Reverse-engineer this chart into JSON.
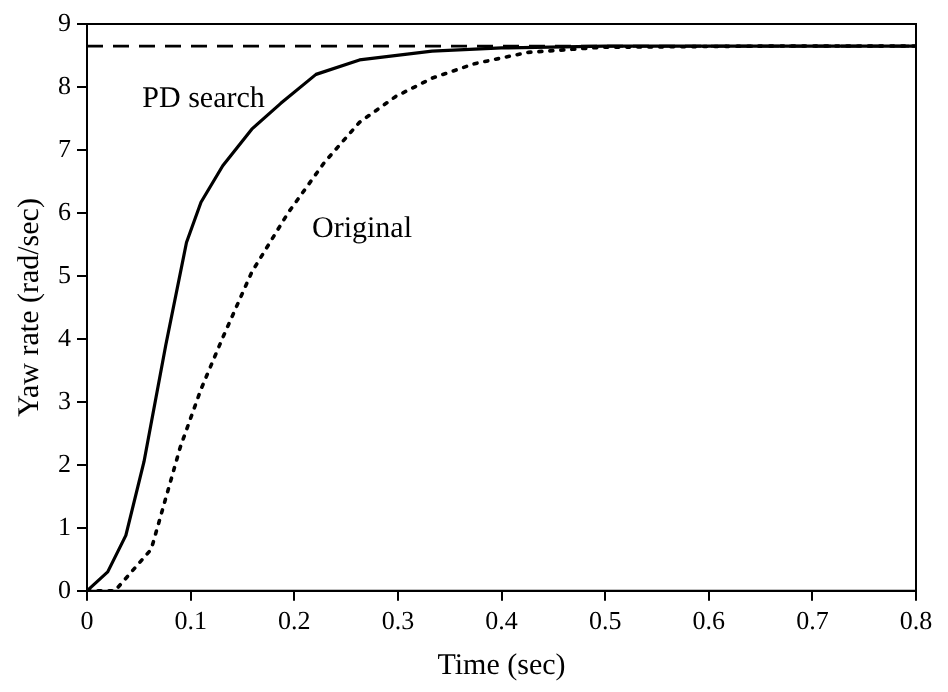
{
  "chart_data": {
    "type": "line",
    "xlabel": "Time (sec)",
    "ylabel": "Yaw rate (rad/sec)",
    "xlim": [
      0,
      0.8
    ],
    "xticks": [
      0,
      0.1,
      0.2,
      0.3,
      0.4,
      0.5,
      0.6,
      0.7,
      0.8
    ],
    "ylim": [
      0,
      9
    ],
    "yticks": [
      0,
      1,
      2,
      3,
      4,
      5,
      6,
      7,
      8,
      9
    ],
    "grid": false,
    "legend": false,
    "marker": "none",
    "series": [
      {
        "name": "PD search",
        "color": "#000000",
        "line_style": "solid",
        "x": [
          0,
          0.02,
          0.0375,
          0.055,
          0.076,
          0.096,
          0.11,
          0.131,
          0.159,
          0.187,
          0.221,
          0.263,
          0.333,
          0.4,
          0.5,
          0.8
        ],
        "values": [
          0,
          0.3,
          0.88,
          2.05,
          3.9,
          5.53,
          6.17,
          6.75,
          7.33,
          7.74,
          8.2,
          8.43,
          8.57,
          8.62,
          8.65,
          8.65
        ]
      },
      {
        "name": "Original",
        "color": "#000000",
        "line_style": "dotted",
        "x": [
          0,
          0.027,
          0.062,
          0.09,
          0.11,
          0.131,
          0.159,
          0.194,
          0.229,
          0.263,
          0.298,
          0.333,
          0.374,
          0.426,
          0.496,
          0.66,
          0.8
        ],
        "values": [
          0,
          0,
          0.66,
          2.28,
          3.2,
          4.02,
          5.06,
          6.0,
          6.8,
          7.44,
          7.85,
          8.14,
          8.37,
          8.55,
          8.63,
          8.65,
          8.65
        ]
      }
    ],
    "ref_lines": [
      {
        "axis": "y",
        "value": 8.65,
        "color": "#000000",
        "line_style": "dashed"
      }
    ]
  }
}
